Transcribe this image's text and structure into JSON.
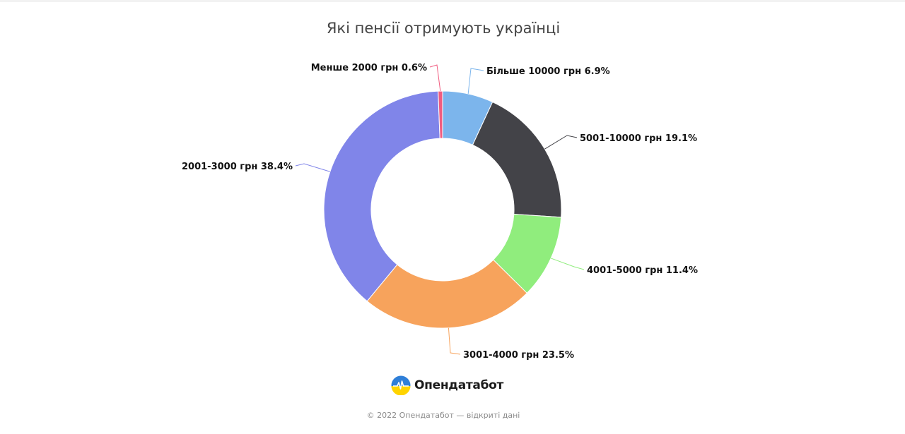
{
  "chart_data": {
    "type": "pie",
    "variant": "donut",
    "title": "Які пенсії отримують українці",
    "categories": [
      "Більше 10000 грн",
      "5001-10000 грн",
      "4001-5000 грн",
      "3001-4000 грн",
      "2001-3000 грн",
      "Менше 2000 грн"
    ],
    "values": [
      6.9,
      19.1,
      11.4,
      23.5,
      38.4,
      0.6
    ],
    "unit": "%",
    "colors": [
      "#7cb5ec",
      "#434348",
      "#90ed7d",
      "#f7a35c",
      "#8085e9",
      "#f15c80"
    ],
    "labels": [
      "Більше 10000 грн 6.9%",
      "5001-10000 грн 19.1%",
      "4001-5000 грн 11.4%",
      "3001-4000 грн 23.5%",
      "2001-3000 грн 38.4%",
      "Менше 2000 грн 0.6%"
    ],
    "legend": "none"
  },
  "brand": {
    "name": "Опендатабот",
    "logo_icon": "sun-over-field-logo-icon"
  },
  "footer": {
    "text": "© 2022 Опендатабот — відкриті дані"
  }
}
